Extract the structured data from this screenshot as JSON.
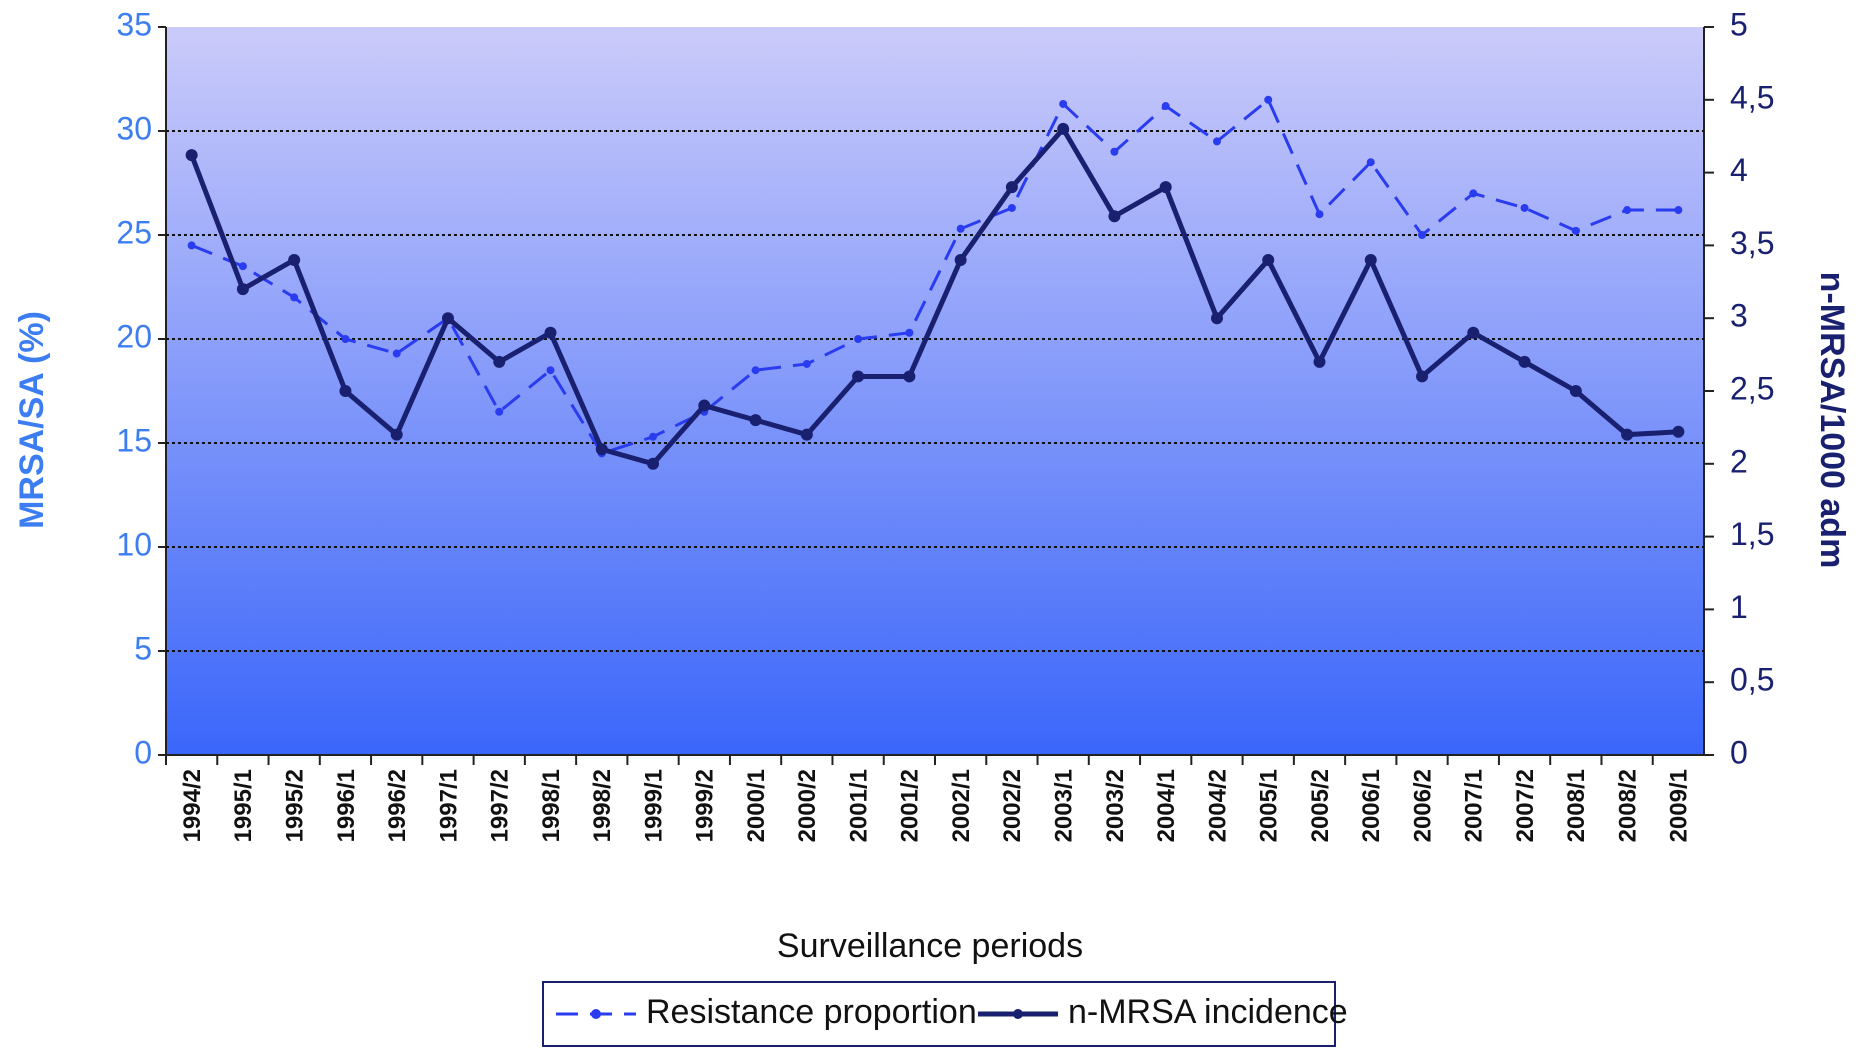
{
  "chart_data": {
    "type": "line",
    "x_label": "Surveillance periods",
    "y_label": "MRSA/SA (%)",
    "y2_label": "n-MRSA/1000 adm",
    "categories": [
      "1994/2",
      "1995/1",
      "1995/2",
      "1996/1",
      "1996/2",
      "1997/1",
      "1997/2",
      "1998/1",
      "1998/2",
      "1999/1",
      "1999/2",
      "2000/1",
      "2000/2",
      "2001/1",
      "2001/2",
      "2002/1",
      "2002/2",
      "2003/1",
      "2003/2",
      "2004/1",
      "2004/2",
      "2005/1",
      "2005/2",
      "2006/1",
      "2006/2",
      "2007/1",
      "2007/2",
      "2008/1",
      "2008/2",
      "2009/1"
    ],
    "series": [
      {
        "name": "Resistance proportion",
        "color": "#2a3cf0",
        "dash": true,
        "values": [
          24.5,
          23.5,
          22,
          20,
          19.3,
          21,
          16.5,
          18.5,
          14.5,
          15.3,
          16.5,
          18.5,
          18.8,
          20,
          20.3,
          25.3,
          26.3,
          31.3,
          29,
          31.2,
          29.5,
          31.5,
          26,
          28.5,
          25,
          27,
          26.3,
          25.2,
          26.2,
          26.2
        ]
      },
      {
        "name": "n-MRSA incidence",
        "color": "#1a2070",
        "axis": "y2",
        "values": [
          4.12,
          3.2,
          3.4,
          2.5,
          2.2,
          3.0,
          2.7,
          2.9,
          2.1,
          2.0,
          2.4,
          2.3,
          2.2,
          2.6,
          2.6,
          3.4,
          3.9,
          4.3,
          3.7,
          3.9,
          3.0,
          3.4,
          2.7,
          3.4,
          2.6,
          2.9,
          2.7,
          2.5,
          2.2,
          2.22
        ]
      }
    ],
    "ylim": [
      0,
      35
    ],
    "yticks": [
      0,
      5,
      10,
      15,
      20,
      25,
      30,
      35
    ],
    "y2lim": [
      0,
      5
    ],
    "y2ticks": [
      0,
      {
        "value": 0.5,
        "label": "0,5"
      },
      1,
      {
        "value": 1.5,
        "label": "1,5"
      },
      2,
      {
        "value": 2.5,
        "label": "2,5"
      },
      3,
      {
        "value": 3.5,
        "label": "3,5"
      },
      4,
      {
        "value": 4.5,
        "label": "4,5"
      },
      5
    ],
    "grid": true
  }
}
